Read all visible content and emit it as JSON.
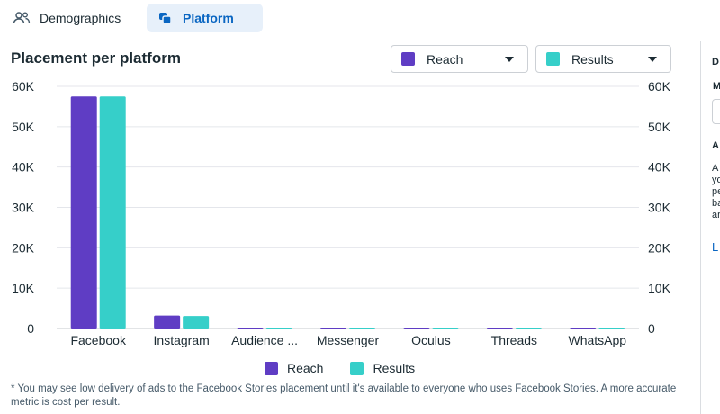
{
  "tabs": [
    {
      "label": "Demographics",
      "icon": "people-icon",
      "active": false
    },
    {
      "label": "Platform",
      "icon": "platform-icon",
      "active": true
    }
  ],
  "title": "Placement per platform",
  "dropdowns": {
    "metric1": {
      "label": "Reach",
      "color": "#5f3dc4"
    },
    "metric2": {
      "label": "Results",
      "color": "#36cfc9"
    }
  },
  "chart_data": {
    "type": "bar",
    "categories": [
      "Facebook",
      "Instagram",
      "Audience ...",
      "Messenger",
      "Oculus",
      "Threads",
      "WhatsApp"
    ],
    "series": [
      {
        "name": "Reach",
        "color": "#5f3dc4",
        "values": [
          57500,
          3200,
          150,
          150,
          150,
          150,
          150
        ]
      },
      {
        "name": "Results",
        "color": "#36cfc9",
        "values": [
          57500,
          3100,
          150,
          150,
          150,
          150,
          150
        ]
      }
    ],
    "ylim": [
      0,
      60000
    ],
    "yticks": [
      0,
      10000,
      20000,
      30000,
      40000,
      50000,
      60000
    ],
    "ytick_labels": [
      "0",
      "10K",
      "20K",
      "30K",
      "40K",
      "50K",
      "60K"
    ],
    "grid": true,
    "legend_position": "bottom"
  },
  "legend": [
    {
      "label": "Reach",
      "color": "#5f3dc4"
    },
    {
      "label": "Results",
      "color": "#36cfc9"
    }
  ],
  "footnote": "* You may see low delivery of ads to the Facebook Stories placement until it's available to everyone who uses Facebook Stories. A more accurate metric is cost per result.",
  "side_panel": {
    "letters": [
      "D",
      "M",
      "A",
      "A",
      "yo",
      "pe",
      "ba",
      "ar",
      "L"
    ]
  }
}
